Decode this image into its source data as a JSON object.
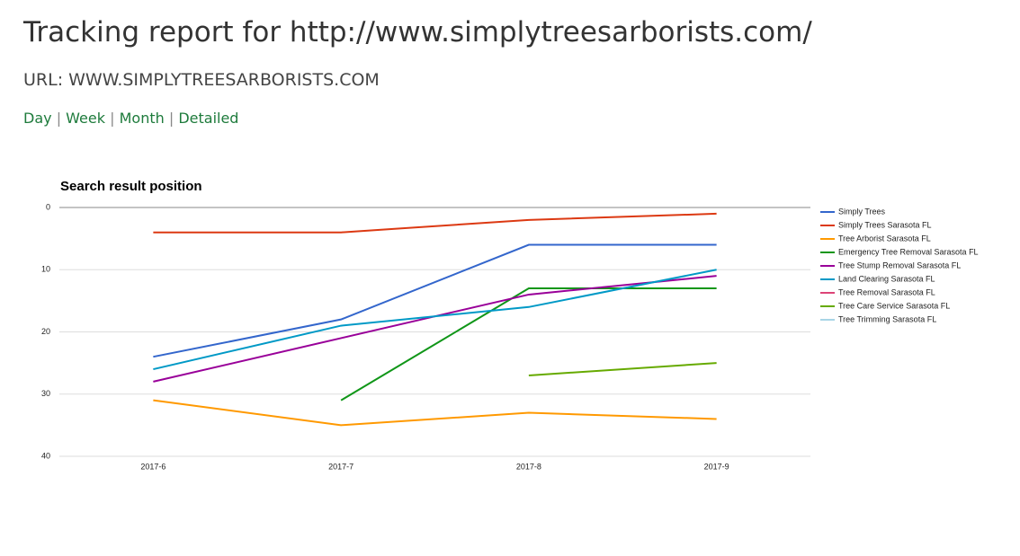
{
  "header": {
    "title": "Tracking report for http://www.simplytreesarborists.com/",
    "url_label": "URL: WWW.SIMPLYTREESARBORISTS.COM"
  },
  "nav": {
    "links": [
      "Day",
      "Week",
      "Month",
      "Detailed"
    ],
    "separator": "|"
  },
  "chart_data": {
    "type": "line",
    "title": "Search result position",
    "categories": [
      "2017-6",
      "2017-7",
      "2017-8",
      "2017-9"
    ],
    "ylim": [
      0,
      40
    ],
    "yticks": [
      0,
      10,
      20,
      30,
      40
    ],
    "y_reversed": true,
    "grid": true,
    "legend": "right",
    "series": [
      {
        "name": "Simply Trees",
        "color": "#3366cc",
        "values": [
          24,
          18,
          6,
          6
        ]
      },
      {
        "name": "Simply Trees Sarasota FL",
        "color": "#dc3912",
        "values": [
          4,
          4,
          2,
          1
        ]
      },
      {
        "name": "Tree Arborist Sarasota FL",
        "color": "#ff9900",
        "values": [
          31,
          35,
          33,
          34
        ]
      },
      {
        "name": "Emergency Tree Removal Sarasota FL",
        "color": "#109618",
        "values": [
          null,
          31,
          13,
          13
        ]
      },
      {
        "name": "Tree Stump Removal Sarasota FL",
        "color": "#990099",
        "values": [
          28,
          21,
          14,
          11
        ]
      },
      {
        "name": "Land Clearing Sarasota FL",
        "color": "#0099c6",
        "values": [
          26,
          19,
          16,
          10
        ]
      },
      {
        "name": "Tree Removal Sarasota FL",
        "color": "#dd4477",
        "values": [
          null,
          null,
          null,
          null
        ]
      },
      {
        "name": "Tree Care Service Sarasota FL",
        "color": "#66aa00",
        "values": [
          null,
          null,
          27,
          25
        ]
      },
      {
        "name": "Tree Trimming Sarasota FL",
        "color": "#a8d5e6",
        "values": [
          null,
          null,
          null,
          null
        ]
      }
    ]
  }
}
